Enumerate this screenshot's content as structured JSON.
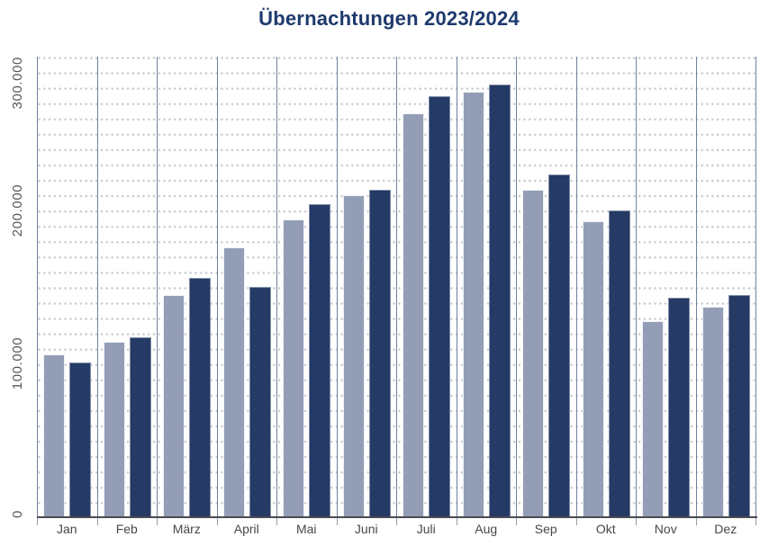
{
  "title": "Übernachtungen 2023/2024",
  "colors": {
    "title_text": "#1e3a6d",
    "bar_2023": "#939eb6",
    "bar_2024": "#253a64",
    "axis_label_text": "#55575c",
    "separator_lines": "#72809f",
    "x_axis_line": "#494c52",
    "grid_dots": "#c6c8d1"
  },
  "chart_data": {
    "type": "bar",
    "title": "Übernachtungen 2023/2024",
    "xlabel": "",
    "ylabel": "",
    "categories": [
      "Jan",
      "Feb",
      "März",
      "April",
      "Mai",
      "Juni",
      "Juli",
      "Aug",
      "Sep",
      "Okt",
      "Nov",
      "Dez"
    ],
    "series": [
      {
        "name": "2023",
        "color": "#939eb6",
        "values": [
          106000,
          114000,
          145000,
          176000,
          194000,
          210000,
          263000,
          277000,
          213000,
          193000,
          128000,
          137000
        ]
      },
      {
        "name": "2024",
        "color": "#253a64",
        "values": [
          101000,
          117000,
          156000,
          150000,
          204000,
          213000,
          274000,
          282000,
          223000,
          200000,
          143000,
          145000
        ]
      }
    ],
    "ylim": [
      0,
      300000
    ],
    "yticks": [
      {
        "value": 0,
        "label": "0"
      },
      {
        "value": 100000,
        "label": "100.000"
      },
      {
        "value": 200000,
        "label": "200.000"
      },
      {
        "value": 300000,
        "label": "300.000"
      }
    ],
    "grid": {
      "minor_step": 10000,
      "minor_style": "dotted",
      "vertical_group_separators": true
    },
    "legend_position": "none"
  }
}
